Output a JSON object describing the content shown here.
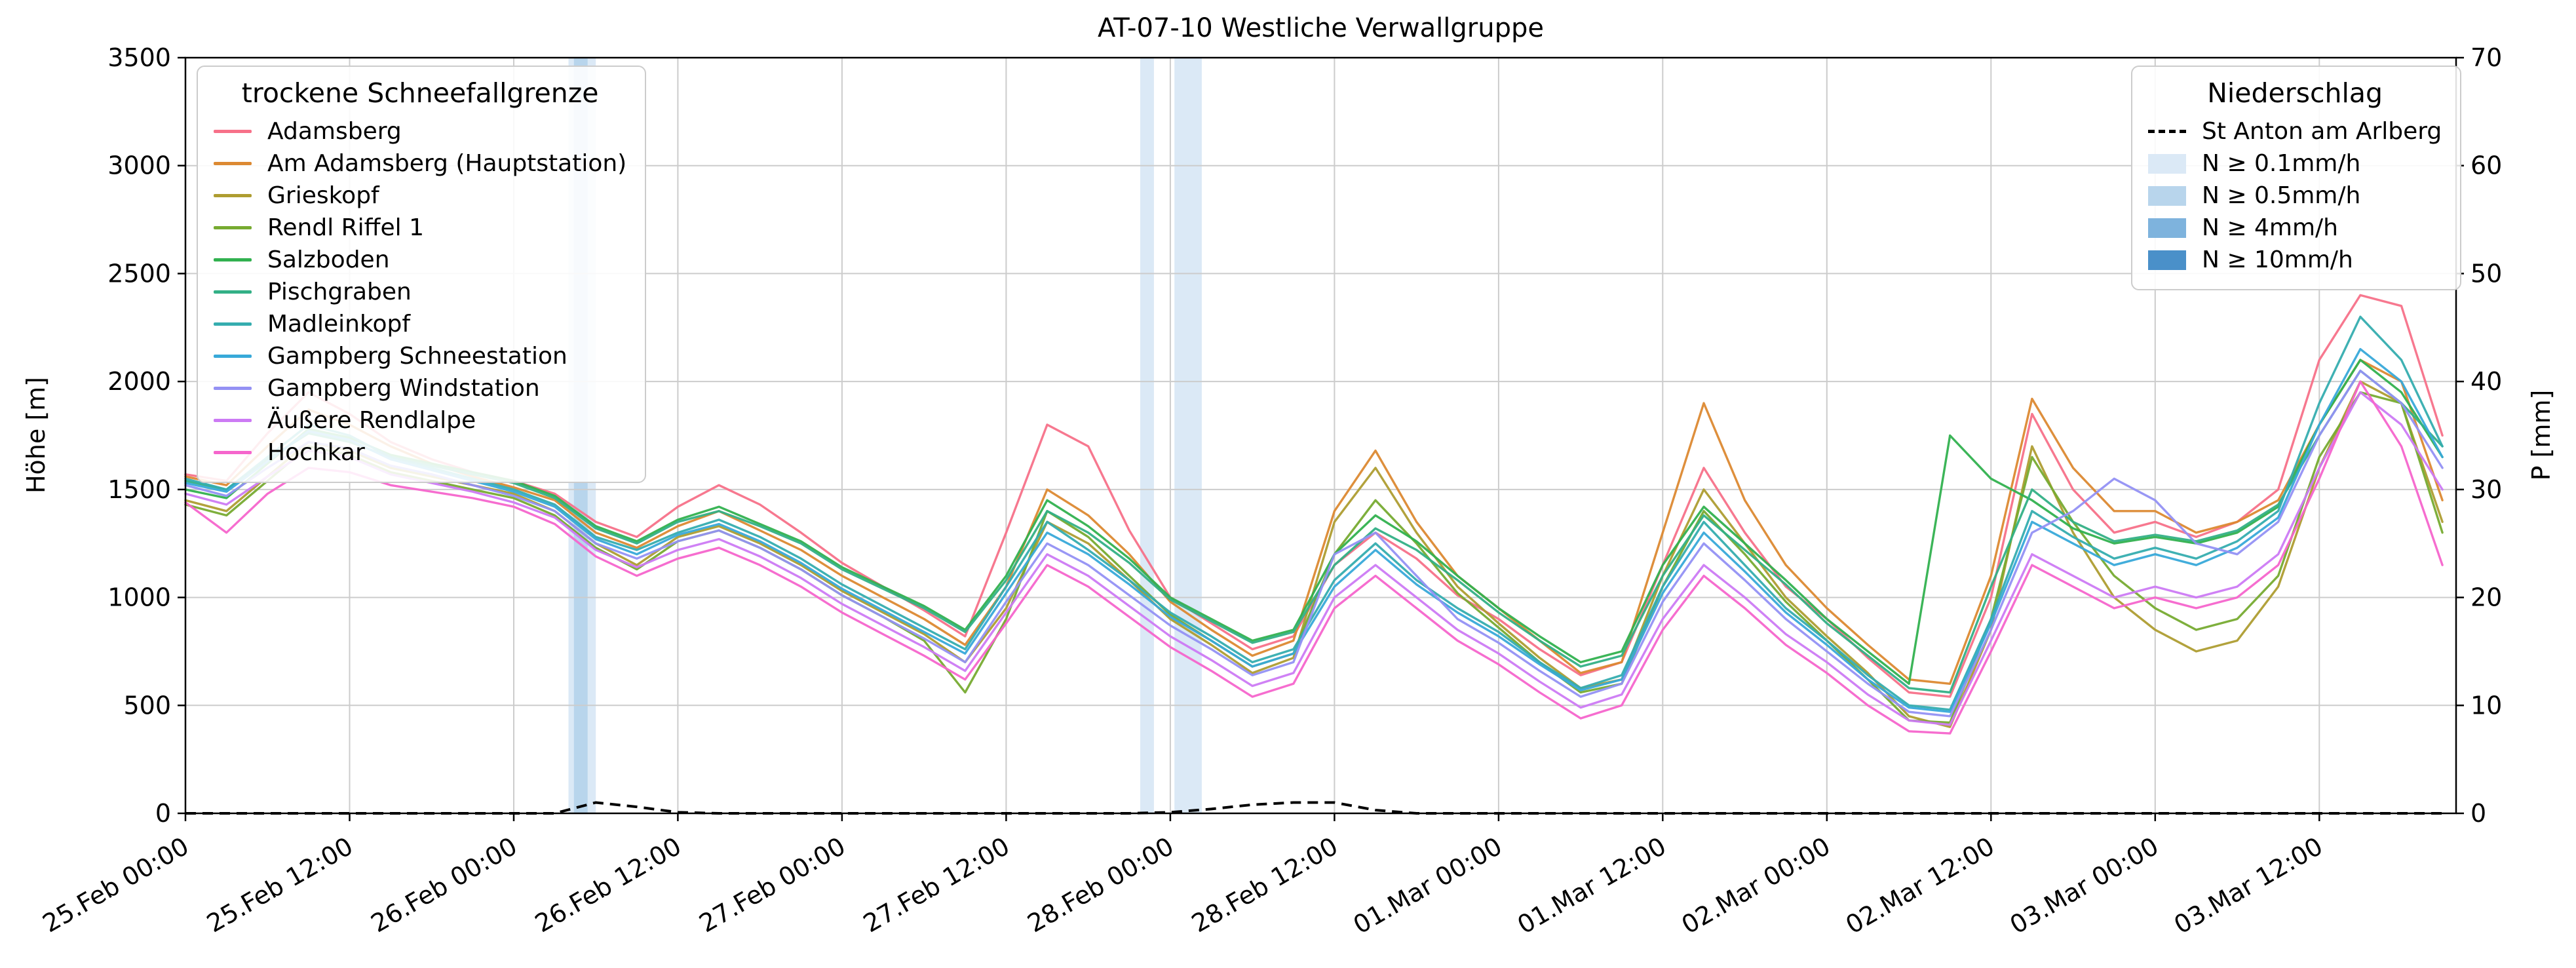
{
  "title": "AT-07-10 Westliche Verwallgruppe",
  "ylabel_left": "Höhe [m]",
  "ylabel_right": "P [mm]",
  "legend_snowline": {
    "title": "trockene Schneefallgrenze"
  },
  "legend_precip": {
    "title": "Niederschlag",
    "line_label": "St Anton am Arlberg",
    "levels": [
      {
        "label": "N ≥ 0.1mm/h",
        "color": "#dbe9f6"
      },
      {
        "label": "N ≥ 0.5mm/h",
        "color": "#b8d5ec"
      },
      {
        "label": "N ≥ 4mm/h",
        "color": "#7eb3dd"
      },
      {
        "label": "N ≥ 10mm/h",
        "color": "#4a90c9"
      }
    ]
  },
  "chart_data": {
    "type": "line",
    "title": "AT-07-10 Westliche Verwallgruppe",
    "xlabel": "",
    "ylabel_left": "Höhe [m]",
    "ylabel_right": "P [mm]",
    "x_unit": "hours since 25.Feb 00:00",
    "x_range": [
      0,
      166
    ],
    "y_left_range": [
      0,
      3500
    ],
    "y_right_range": [
      0,
      70
    ],
    "y_left_ticks": [
      0,
      500,
      1000,
      1500,
      2000,
      2500,
      3000,
      3500
    ],
    "y_right_ticks": [
      0,
      10,
      20,
      30,
      40,
      50,
      60,
      70
    ],
    "x_ticks": [
      {
        "t": 0,
        "label": "25.Feb 00:00"
      },
      {
        "t": 12,
        "label": "25.Feb 12:00"
      },
      {
        "t": 24,
        "label": "26.Feb 00:00"
      },
      {
        "t": 36,
        "label": "26.Feb 12:00"
      },
      {
        "t": 48,
        "label": "27.Feb 00:00"
      },
      {
        "t": 60,
        "label": "27.Feb 12:00"
      },
      {
        "t": 72,
        "label": "28.Feb 00:00"
      },
      {
        "t": 84,
        "label": "28.Feb 12:00"
      },
      {
        "t": 96,
        "label": "01.Mar 00:00"
      },
      {
        "t": 108,
        "label": "01.Mar 12:00"
      },
      {
        "t": 120,
        "label": "02.Mar 00:00"
      },
      {
        "t": 132,
        "label": "02.Mar 12:00"
      },
      {
        "t": 144,
        "label": "03.Mar 00:00"
      },
      {
        "t": 156,
        "label": "03.Mar 12:00"
      }
    ],
    "x_hours": [
      0,
      3,
      6,
      9,
      12,
      15,
      18,
      21,
      24,
      27,
      30,
      33,
      36,
      39,
      42,
      45,
      48,
      51,
      54,
      57,
      60,
      63,
      66,
      69,
      72,
      75,
      78,
      81,
      84,
      87,
      90,
      93,
      96,
      99,
      102,
      105,
      108,
      111,
      114,
      117,
      120,
      123,
      126,
      129,
      132,
      135,
      138,
      141,
      144,
      147,
      150,
      153,
      156,
      159,
      162,
      165
    ],
    "series": [
      {
        "name": "Adamsberg",
        "color": "#f77189",
        "values": [
          1570,
          1540,
          1760,
          1950,
          1850,
          1720,
          1640,
          1580,
          1540,
          1480,
          1350,
          1280,
          1420,
          1520,
          1430,
          1300,
          1160,
          1050,
          940,
          820,
          1300,
          1800,
          1700,
          1310,
          1000,
          880,
          760,
          820,
          1150,
          1300,
          1180,
          1010,
          900,
          760,
          640,
          700,
          1150,
          1600,
          1300,
          1050,
          900,
          720,
          560,
          540,
          1000,
          1850,
          1500,
          1300,
          1350,
          1280,
          1350,
          1500,
          2100,
          2400,
          2350,
          1750
        ]
      },
      {
        "name": "Am Adamsberg (Hauptstation)",
        "color": "#dc8932",
        "values": [
          1560,
          1520,
          1700,
          1870,
          1800,
          1700,
          1620,
          1560,
          1510,
          1450,
          1300,
          1230,
          1330,
          1400,
          1310,
          1220,
          1100,
          1000,
          900,
          780,
          1050,
          1500,
          1380,
          1200,
          980,
          850,
          730,
          800,
          1400,
          1680,
          1350,
          1100,
          950,
          800,
          650,
          700,
          1300,
          1900,
          1450,
          1150,
          950,
          780,
          620,
          600,
          1100,
          1920,
          1600,
          1400,
          1400,
          1300,
          1350,
          1450,
          1800,
          2100,
          2000,
          1450
        ]
      },
      {
        "name": "Grieskopf",
        "color": "#ae9d31",
        "values": [
          1450,
          1400,
          1560,
          1720,
          1680,
          1600,
          1560,
          1520,
          1480,
          1400,
          1250,
          1150,
          1280,
          1330,
          1250,
          1150,
          1030,
          930,
          830,
          700,
          950,
          1350,
          1250,
          1080,
          900,
          780,
          650,
          720,
          1350,
          1600,
          1300,
          1050,
          880,
          720,
          580,
          620,
          1100,
          1500,
          1250,
          1000,
          820,
          650,
          450,
          400,
          850,
          1700,
          1300,
          1000,
          850,
          750,
          800,
          1050,
          1600,
          2000,
          1900,
          1350
        ]
      },
      {
        "name": "Rendl Riffel 1",
        "color": "#77ab31",
        "values": [
          1430,
          1380,
          1540,
          1700,
          1660,
          1580,
          1540,
          1500,
          1460,
          1380,
          1230,
          1130,
          1260,
          1310,
          1230,
          1130,
          1010,
          910,
          800,
          560,
          900,
          1400,
          1280,
          1100,
          920,
          800,
          680,
          740,
          1200,
          1450,
          1250,
          1020,
          860,
          700,
          560,
          600,
          1050,
          1400,
          1200,
          980,
          800,
          620,
          430,
          420,
          900,
          1650,
          1350,
          1100,
          950,
          850,
          900,
          1100,
          1650,
          1950,
          1900,
          1300
        ]
      },
      {
        "name": "Salzboden",
        "color": "#31b14f",
        "values": [
          1500,
          1460,
          1620,
          1780,
          1740,
          1660,
          1620,
          1580,
          1540,
          1470,
          1330,
          1260,
          1360,
          1420,
          1340,
          1260,
          1140,
          1050,
          960,
          850,
          1100,
          1450,
          1330,
          1180,
          1000,
          900,
          800,
          850,
          1200,
          1380,
          1260,
          1100,
          950,
          820,
          700,
          750,
          1150,
          1420,
          1250,
          1080,
          900,
          750,
          600,
          1750,
          1550,
          1450,
          1320,
          1250,
          1280,
          1250,
          1300,
          1420,
          1800,
          2100,
          1950,
          1650
        ]
      },
      {
        "name": "Pischgraben",
        "color": "#33b086",
        "values": [
          1540,
          1500,
          1640,
          1760,
          1720,
          1650,
          1610,
          1570,
          1530,
          1460,
          1320,
          1250,
          1350,
          1400,
          1330,
          1250,
          1130,
          1040,
          950,
          840,
          1080,
          1400,
          1300,
          1160,
          990,
          890,
          790,
          840,
          1150,
          1320,
          1220,
          1080,
          930,
          800,
          680,
          730,
          1100,
          1380,
          1220,
          1060,
          880,
          730,
          580,
          560,
          1050,
          1500,
          1350,
          1260,
          1290,
          1260,
          1310,
          1430,
          1750,
          2050,
          1900,
          1700
        ]
      },
      {
        "name": "Madleinkopf",
        "color": "#35adaf",
        "values": [
          1550,
          1500,
          1650,
          1800,
          1750,
          1650,
          1600,
          1550,
          1500,
          1430,
          1280,
          1220,
          1300,
          1360,
          1280,
          1180,
          1060,
          960,
          860,
          760,
          1050,
          1350,
          1220,
          1080,
          930,
          820,
          700,
          760,
          1080,
          1250,
          1080,
          950,
          840,
          700,
          580,
          640,
          1050,
          1350,
          1150,
          950,
          800,
          640,
          500,
          480,
          900,
          1400,
          1280,
          1180,
          1230,
          1180,
          1260,
          1400,
          1900,
          2300,
          2100,
          1700
        ]
      },
      {
        "name": "Gampberg Schneestation",
        "color": "#38a9d9",
        "values": [
          1530,
          1490,
          1630,
          1770,
          1730,
          1640,
          1590,
          1540,
          1490,
          1420,
          1270,
          1200,
          1290,
          1340,
          1260,
          1160,
          1040,
          940,
          840,
          740,
          1020,
          1300,
          1200,
          1060,
          910,
          800,
          680,
          740,
          1050,
          1220,
          1060,
          930,
          820,
          690,
          570,
          620,
          1020,
          1300,
          1120,
          930,
          780,
          620,
          490,
          470,
          880,
          1350,
          1250,
          1150,
          1200,
          1150,
          1230,
          1370,
          1800,
          2150,
          2000,
          1650
        ]
      },
      {
        "name": "Gampberg Windstation",
        "color": "#9491f4",
        "values": [
          1520,
          1470,
          1600,
          1720,
          1690,
          1610,
          1570,
          1520,
          1470,
          1400,
          1250,
          1180,
          1260,
          1310,
          1230,
          1130,
          1010,
          910,
          810,
          700,
          980,
          1250,
          1150,
          1010,
          870,
          760,
          640,
          700,
          1200,
          1300,
          1100,
          900,
          790,
          660,
          540,
          600,
          980,
          1250,
          1080,
          900,
          750,
          600,
          470,
          450,
          850,
          1300,
          1400,
          1550,
          1450,
          1250,
          1200,
          1350,
          1750,
          2050,
          1900,
          1600
        ]
      },
      {
        "name": "Äußere Rendlalpe",
        "color": "#cc7af4",
        "values": [
          1480,
          1430,
          1560,
          1680,
          1650,
          1570,
          1530,
          1490,
          1440,
          1370,
          1220,
          1140,
          1220,
          1270,
          1190,
          1090,
          970,
          870,
          770,
          660,
          930,
          1200,
          1100,
          960,
          820,
          710,
          590,
          650,
          1000,
          1150,
          1000,
          850,
          740,
          610,
          490,
          550,
          900,
          1150,
          1000,
          830,
          700,
          550,
          430,
          410,
          800,
          1200,
          1100,
          1000,
          1050,
          1000,
          1050,
          1200,
          1600,
          1950,
          1800,
          1500
        ]
      },
      {
        "name": "Hochkar",
        "color": "#f565cc",
        "values": [
          1440,
          1300,
          1480,
          1600,
          1580,
          1520,
          1490,
          1460,
          1420,
          1340,
          1190,
          1100,
          1180,
          1230,
          1150,
          1050,
          930,
          830,
          730,
          620,
          880,
          1150,
          1050,
          910,
          770,
          660,
          540,
          600,
          950,
          1100,
          950,
          800,
          690,
          560,
          440,
          500,
          850,
          1100,
          950,
          780,
          650,
          500,
          380,
          370,
          750,
          1150,
          1050,
          950,
          1000,
          950,
          1000,
          1150,
          1550,
          2000,
          1700,
          1150
        ]
      }
    ],
    "precipitation": {
      "name": "St Anton am Arlberg",
      "color": "#000000",
      "style": "dashed",
      "axis": "right",
      "values": [
        0,
        0,
        0,
        0,
        0,
        0,
        0,
        0,
        0,
        0,
        1,
        0.6,
        0.1,
        0,
        0,
        0,
        0,
        0,
        0,
        0,
        0,
        0,
        0,
        0,
        0.1,
        0.4,
        0.8,
        1,
        1,
        0.3,
        0,
        0,
        0,
        0,
        0,
        0,
        0,
        0,
        0,
        0,
        0,
        0,
        0,
        0,
        0,
        0,
        0,
        0,
        0,
        0,
        0,
        0,
        0,
        0,
        0,
        0
      ]
    },
    "precip_bands": [
      {
        "t0": 28,
        "t1": 30,
        "level": "N ≥ 0.1mm/h"
      },
      {
        "t0": 28.4,
        "t1": 29.4,
        "level": "N ≥ 0.5mm/h"
      },
      {
        "t0": 69.8,
        "t1": 70.8,
        "level": "N ≥ 0.1mm/h"
      },
      {
        "t0": 72.3,
        "t1": 74.3,
        "level": "N ≥ 0.1mm/h"
      }
    ],
    "grid": true,
    "legend_positions": {
      "snowline": "upper left",
      "precip": "upper right"
    }
  }
}
